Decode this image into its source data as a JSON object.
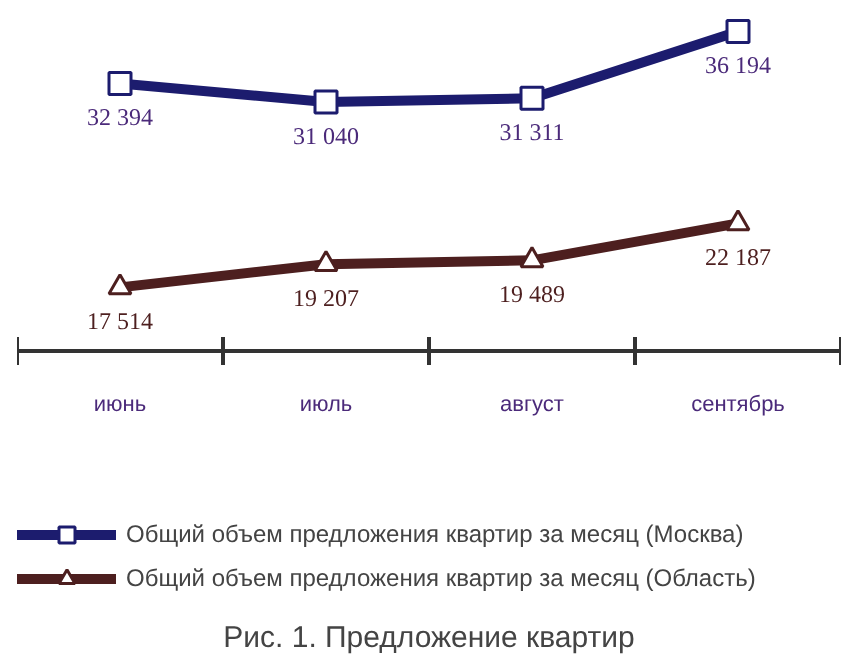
{
  "chart_data": {
    "type": "line",
    "title": "Рис. 1. Предложение квартир",
    "categories": [
      "июнь",
      "июль",
      "август",
      "сентябрь"
    ],
    "series": [
      {
        "name": "Общий объем предложения квартир за месяц (Москва)",
        "color": "#1c1c6e",
        "marker": "square",
        "values": [
          32394,
          31040,
          31311,
          36194
        ]
      },
      {
        "name": "Общий объем предложения квартир за месяц (Область)",
        "color": "#4d1f1f",
        "marker": "triangle",
        "values": [
          17514,
          19207,
          19489,
          22187
        ]
      }
    ],
    "data_labels": true,
    "legend": "bottom",
    "grid": false
  }
}
